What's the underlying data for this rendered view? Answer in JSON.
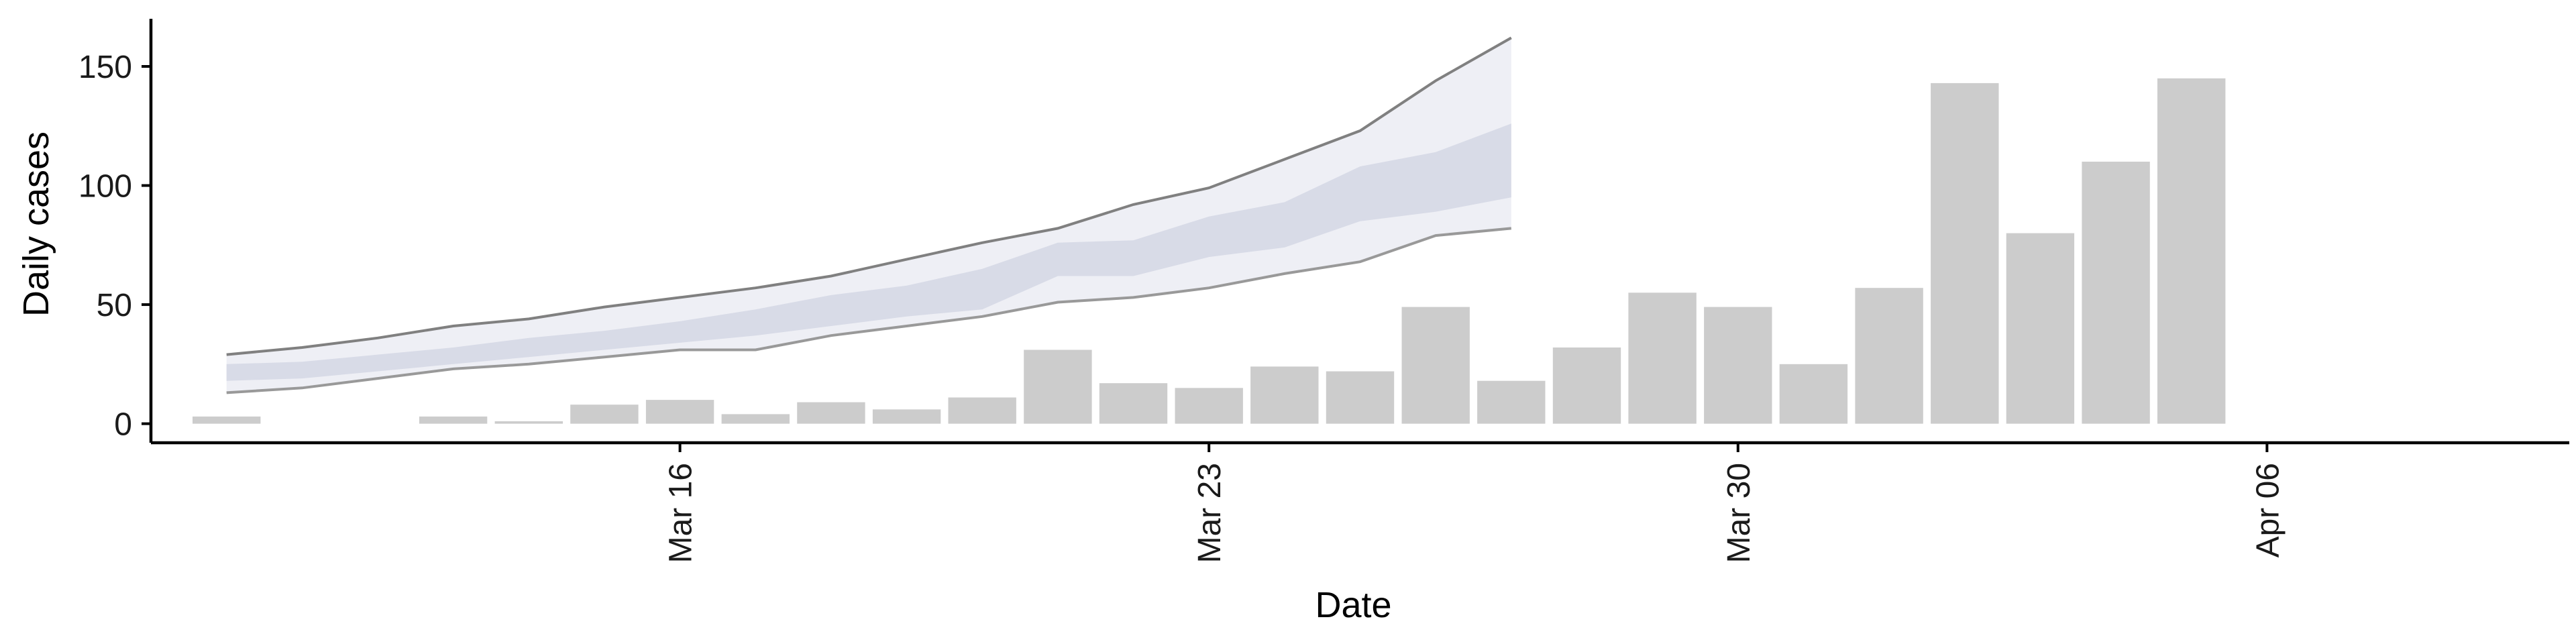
{
  "chart_data": {
    "type": "bar",
    "xlabel": "Date",
    "ylabel": "Daily cases",
    "ylim": [
      -8,
      170
    ],
    "yticks": [
      0,
      50,
      100,
      150
    ],
    "xlim": [
      "2020-03-09",
      "2020-04-10"
    ],
    "xticks": [
      {
        "date": "2020-03-16",
        "label": "Mar 16"
      },
      {
        "date": "2020-03-23",
        "label": "Mar 23"
      },
      {
        "date": "2020-03-30",
        "label": "Mar 30"
      },
      {
        "date": "2020-04-06",
        "label": "Apr 06"
      }
    ],
    "series": [
      {
        "kind": "bars",
        "color": "#cccccc",
        "dates": [
          "2020-03-10",
          "2020-03-11",
          "2020-03-12",
          "2020-03-13",
          "2020-03-14",
          "2020-03-15",
          "2020-03-16",
          "2020-03-17",
          "2020-03-18",
          "2020-03-19",
          "2020-03-20",
          "2020-03-21",
          "2020-03-22",
          "2020-03-23",
          "2020-03-24",
          "2020-03-25",
          "2020-03-26",
          "2020-03-27",
          "2020-03-28",
          "2020-03-29",
          "2020-03-30",
          "2020-03-31",
          "2020-04-01",
          "2020-04-02",
          "2020-04-03",
          "2020-04-04",
          "2020-04-05",
          "2020-04-06",
          "2020-04-07"
        ],
        "values": [
          3,
          0,
          0,
          3,
          1,
          8,
          10,
          4,
          9,
          6,
          11,
          31,
          17,
          15,
          24,
          22,
          49,
          18,
          32,
          55,
          49,
          25,
          57,
          143,
          80,
          110,
          145,
          0,
          0
        ]
      },
      {
        "kind": "ribbon",
        "dates": [
          "2020-03-10",
          "2020-03-11",
          "2020-03-12",
          "2020-03-13",
          "2020-03-14",
          "2020-03-15",
          "2020-03-16",
          "2020-03-17",
          "2020-03-18",
          "2020-03-19",
          "2020-03-20",
          "2020-03-21",
          "2020-03-22",
          "2020-03-23",
          "2020-03-24",
          "2020-03-25",
          "2020-03-26",
          "2020-03-27",
          "2020-03-28"
        ],
        "outer_upper": [
          29,
          32,
          36,
          41,
          44,
          49,
          53,
          57,
          62,
          69,
          76,
          82,
          92,
          99,
          111,
          123,
          144,
          162,
          null
        ],
        "outer_lower": [
          13,
          15,
          19,
          23,
          25,
          28,
          31,
          31,
          37,
          41,
          45,
          51,
          53,
          57,
          63,
          68,
          79,
          82,
          null
        ],
        "inner_upper": [
          25,
          26,
          29,
          32,
          36,
          39,
          43,
          48,
          54,
          58,
          65,
          76,
          77,
          87,
          93,
          108,
          114,
          126,
          null
        ],
        "inner_lower": [
          18,
          19,
          22,
          25,
          28,
          31,
          34,
          37,
          41,
          45,
          48,
          62,
          62,
          70,
          74,
          85,
          89,
          95,
          null
        ],
        "outer_color": "#eeeff5",
        "inner_color": "#d5d8e6",
        "upper_line_color": "#808080",
        "lower_line_color": "#999999"
      }
    ]
  }
}
